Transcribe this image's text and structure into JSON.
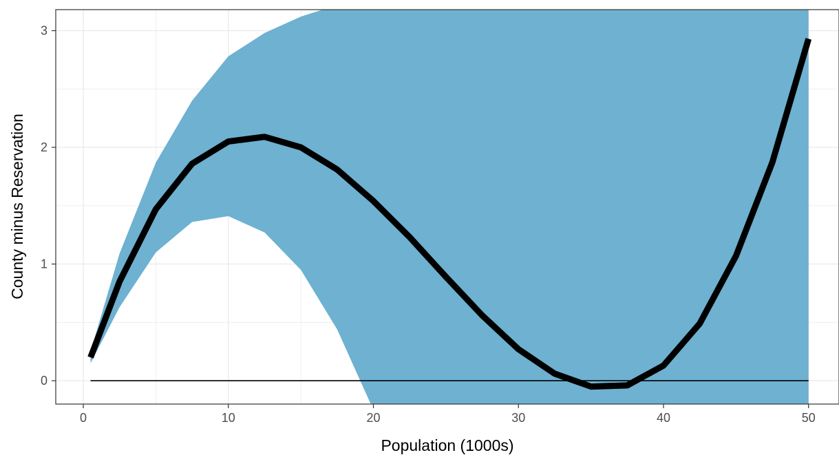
{
  "chart_data": {
    "type": "line",
    "title": "",
    "xlabel": "Population (1000s)",
    "ylabel": "County minus Reservation",
    "xlim": [
      -1.9,
      52.1
    ],
    "ylim": [
      -0.2,
      3.18
    ],
    "x_ticks": [
      0,
      10,
      20,
      30,
      40,
      50
    ],
    "y_ticks": [
      0,
      1,
      2,
      3
    ],
    "grid": true,
    "legend": "none",
    "colors": {
      "ribbon": "#6eb1d1",
      "line": "#000000",
      "grid": "#ebebeb",
      "border": "#333333"
    },
    "series": [
      {
        "x": [
          0.5,
          2.5,
          5,
          7.5,
          10,
          12.5,
          15,
          17.5,
          20,
          22.5,
          25,
          27.5,
          30,
          32.5,
          35,
          37.5,
          40,
          42.5,
          45,
          47.5,
          50
        ],
        "y": [
          0.2,
          0.85,
          1.47,
          1.86,
          2.05,
          2.09,
          2.0,
          1.81,
          1.54,
          1.23,
          0.89,
          0.56,
          0.27,
          0.06,
          -0.05,
          -0.04,
          0.13,
          0.49,
          1.07,
          1.87,
          2.93
        ],
        "lower": [
          0.15,
          0.63,
          1.1,
          1.36,
          1.41,
          1.27,
          0.95,
          0.44,
          -0.25,
          -0.5,
          -0.5,
          -0.5,
          -0.5,
          -0.5,
          -0.5,
          -0.5,
          -0.5,
          -0.5,
          -0.5,
          -0.5,
          -0.5
        ],
        "upper": [
          0.25,
          1.09,
          1.87,
          2.4,
          2.78,
          2.98,
          3.12,
          3.22,
          3.3,
          3.4,
          3.5,
          3.5,
          3.5,
          3.5,
          3.5,
          3.5,
          3.5,
          3.5,
          3.5,
          3.5,
          3.5
        ]
      }
    ],
    "reference_line": {
      "y": 0,
      "x_range": [
        0.5,
        50
      ]
    }
  }
}
